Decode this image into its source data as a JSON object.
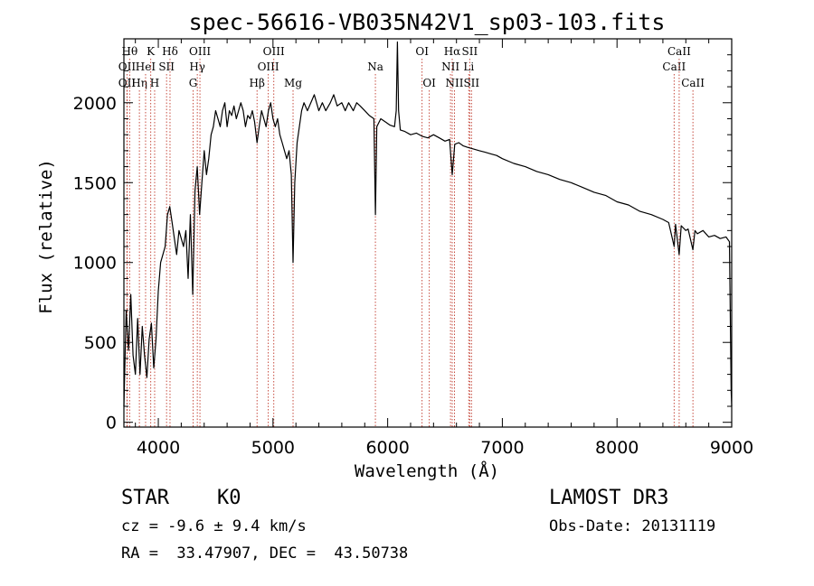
{
  "chart_data": {
    "type": "line",
    "title": "spec-56616-VB035N42V1_sp03-103.fits",
    "xlabel": "Wavelength (Å)",
    "ylabel": "Flux (relative)",
    "xlim": [
      3700,
      9000
    ],
    "ylim": [
      -30,
      2400
    ],
    "xticks": [
      4000,
      5000,
      6000,
      7000,
      8000,
      9000
    ],
    "yticks": [
      0,
      500,
      1000,
      1500,
      2000
    ],
    "series": [
      {
        "name": "flux",
        "points": [
          [
            3700,
            100
          ],
          [
            3720,
            700
          ],
          [
            3740,
            450
          ],
          [
            3760,
            800
          ],
          [
            3780,
            420
          ],
          [
            3800,
            300
          ],
          [
            3820,
            650
          ],
          [
            3840,
            300
          ],
          [
            3860,
            600
          ],
          [
            3880,
            420
          ],
          [
            3900,
            280
          ],
          [
            3920,
            520
          ],
          [
            3940,
            620
          ],
          [
            3960,
            340
          ],
          [
            3980,
            520
          ],
          [
            4000,
            820
          ],
          [
            4020,
            1000
          ],
          [
            4040,
            1050
          ],
          [
            4060,
            1100
          ],
          [
            4080,
            1300
          ],
          [
            4100,
            1350
          ],
          [
            4120,
            1250
          ],
          [
            4140,
            1150
          ],
          [
            4160,
            1050
          ],
          [
            4180,
            1200
          ],
          [
            4200,
            1150
          ],
          [
            4220,
            1100
          ],
          [
            4240,
            1200
          ],
          [
            4260,
            900
          ],
          [
            4280,
            1300
          ],
          [
            4300,
            800
          ],
          [
            4320,
            1450
          ],
          [
            4340,
            1600
          ],
          [
            4360,
            1300
          ],
          [
            4380,
            1500
          ],
          [
            4400,
            1700
          ],
          [
            4420,
            1550
          ],
          [
            4440,
            1650
          ],
          [
            4460,
            1800
          ],
          [
            4480,
            1850
          ],
          [
            4500,
            1950
          ],
          [
            4520,
            1900
          ],
          [
            4540,
            1850
          ],
          [
            4560,
            1950
          ],
          [
            4580,
            2000
          ],
          [
            4600,
            1850
          ],
          [
            4620,
            1950
          ],
          [
            4640,
            1920
          ],
          [
            4660,
            1980
          ],
          [
            4680,
            1900
          ],
          [
            4700,
            1950
          ],
          [
            4720,
            2000
          ],
          [
            4740,
            1950
          ],
          [
            4760,
            1850
          ],
          [
            4780,
            1920
          ],
          [
            4800,
            1900
          ],
          [
            4820,
            1950
          ],
          [
            4840,
            1880
          ],
          [
            4861,
            1750
          ],
          [
            4880,
            1850
          ],
          [
            4900,
            1950
          ],
          [
            4920,
            1900
          ],
          [
            4940,
            1850
          ],
          [
            4960,
            1950
          ],
          [
            4980,
            2000
          ],
          [
            5000,
            1900
          ],
          [
            5020,
            1850
          ],
          [
            5040,
            1900
          ],
          [
            5060,
            1800
          ],
          [
            5080,
            1750
          ],
          [
            5100,
            1700
          ],
          [
            5120,
            1650
          ],
          [
            5140,
            1700
          ],
          [
            5160,
            1550
          ],
          [
            5175,
            1000
          ],
          [
            5190,
            1500
          ],
          [
            5210,
            1750
          ],
          [
            5230,
            1850
          ],
          [
            5250,
            1950
          ],
          [
            5270,
            2000
          ],
          [
            5300,
            1950
          ],
          [
            5330,
            2000
          ],
          [
            5360,
            2050
          ],
          [
            5400,
            1950
          ],
          [
            5430,
            2000
          ],
          [
            5460,
            1950
          ],
          [
            5500,
            2000
          ],
          [
            5530,
            2050
          ],
          [
            5560,
            1980
          ],
          [
            5600,
            2000
          ],
          [
            5630,
            1950
          ],
          [
            5660,
            2000
          ],
          [
            5700,
            1950
          ],
          [
            5730,
            2000
          ],
          [
            5760,
            1980
          ],
          [
            5800,
            1950
          ],
          [
            5840,
            1920
          ],
          [
            5880,
            1900
          ],
          [
            5893,
            1300
          ],
          [
            5905,
            1850
          ],
          [
            5940,
            1900
          ],
          [
            5980,
            1880
          ],
          [
            6020,
            1860
          ],
          [
            6060,
            1850
          ],
          [
            6075,
            1950
          ],
          [
            6085,
            2380
          ],
          [
            6095,
            1950
          ],
          [
            6110,
            1830
          ],
          [
            6150,
            1820
          ],
          [
            6200,
            1800
          ],
          [
            6250,
            1810
          ],
          [
            6300,
            1790
          ],
          [
            6350,
            1780
          ],
          [
            6400,
            1800
          ],
          [
            6450,
            1780
          ],
          [
            6500,
            1760
          ],
          [
            6540,
            1770
          ],
          [
            6563,
            1550
          ],
          [
            6585,
            1740
          ],
          [
            6620,
            1750
          ],
          [
            6660,
            1730
          ],
          [
            6700,
            1720
          ],
          [
            6750,
            1710
          ],
          [
            6800,
            1700
          ],
          [
            6850,
            1690
          ],
          [
            6900,
            1680
          ],
          [
            6950,
            1670
          ],
          [
            7000,
            1650
          ],
          [
            7100,
            1620
          ],
          [
            7200,
            1600
          ],
          [
            7300,
            1570
          ],
          [
            7400,
            1550
          ],
          [
            7500,
            1520
          ],
          [
            7600,
            1500
          ],
          [
            7700,
            1470
          ],
          [
            7800,
            1440
          ],
          [
            7900,
            1420
          ],
          [
            8000,
            1380
          ],
          [
            8100,
            1360
          ],
          [
            8200,
            1320
          ],
          [
            8300,
            1300
          ],
          [
            8400,
            1270
          ],
          [
            8450,
            1250
          ],
          [
            8498,
            1100
          ],
          [
            8510,
            1240
          ],
          [
            8542,
            1050
          ],
          [
            8560,
            1230
          ],
          [
            8600,
            1200
          ],
          [
            8620,
            1210
          ],
          [
            8662,
            1080
          ],
          [
            8680,
            1200
          ],
          [
            8700,
            1180
          ],
          [
            8750,
            1200
          ],
          [
            8800,
            1160
          ],
          [
            8850,
            1170
          ],
          [
            8900,
            1150
          ],
          [
            8950,
            1160
          ],
          [
            8980,
            1130
          ],
          [
            8995,
            200
          ],
          [
            9000,
            100
          ]
        ]
      }
    ],
    "lines": [
      {
        "wave": 3750,
        "label": "Hθ",
        "row": 1
      },
      {
        "wave": 3727,
        "label": "OII",
        "row": 2
      },
      {
        "wave": 3727,
        "label": "OII",
        "row": 3
      },
      {
        "wave": 3835,
        "label": "Hη",
        "row": 3
      },
      {
        "wave": 3889,
        "label": "HeI",
        "row": 2
      },
      {
        "wave": 3934,
        "label": "K",
        "row": 1
      },
      {
        "wave": 3968,
        "label": "H",
        "row": 3
      },
      {
        "wave": 4072,
        "label": "SII",
        "row": 2
      },
      {
        "wave": 4102,
        "label": "Hδ",
        "row": 1
      },
      {
        "wave": 4304,
        "label": "G",
        "row": 3
      },
      {
        "wave": 4340,
        "label": "Hγ",
        "row": 2
      },
      {
        "wave": 4363,
        "label": "OIII",
        "row": 1
      },
      {
        "wave": 4861,
        "label": "Hβ",
        "row": 3
      },
      {
        "wave": 4959,
        "label": "OIII",
        "row": 2
      },
      {
        "wave": 5007,
        "label": "OIII",
        "row": 1
      },
      {
        "wave": 5175,
        "label": "Mg",
        "row": 3
      },
      {
        "wave": 5893,
        "label": "Na",
        "row": 2
      },
      {
        "wave": 6300,
        "label": "OI",
        "row": 1
      },
      {
        "wave": 6363,
        "label": "OI",
        "row": 3
      },
      {
        "wave": 6548,
        "label": "NII",
        "row": 2
      },
      {
        "wave": 6563,
        "label": "Hα",
        "row": 1
      },
      {
        "wave": 6583,
        "label": "NII",
        "row": 3
      },
      {
        "wave": 6707,
        "label": "Li",
        "row": 2
      },
      {
        "wave": 6716,
        "label": "SII",
        "row": 1
      },
      {
        "wave": 6731,
        "label": "SII",
        "row": 3
      },
      {
        "wave": 8498,
        "label": "CaII",
        "row": 2
      },
      {
        "wave": 8542,
        "label": "CaII",
        "row": 1
      },
      {
        "wave": 8662,
        "label": "CaII",
        "row": 3
      }
    ]
  },
  "info": {
    "class_line": "STAR    K0",
    "survey": "LAMOST DR3",
    "cz_line": "cz = -9.6 ± 9.4 km/s",
    "obs_date": "Obs-Date: 20131119",
    "radec_line": "RA =  33.47907, DEC =  43.50738"
  },
  "colors": {
    "line_marker": "#c0392b",
    "spectrum": "#000000",
    "axes": "#000000"
  }
}
